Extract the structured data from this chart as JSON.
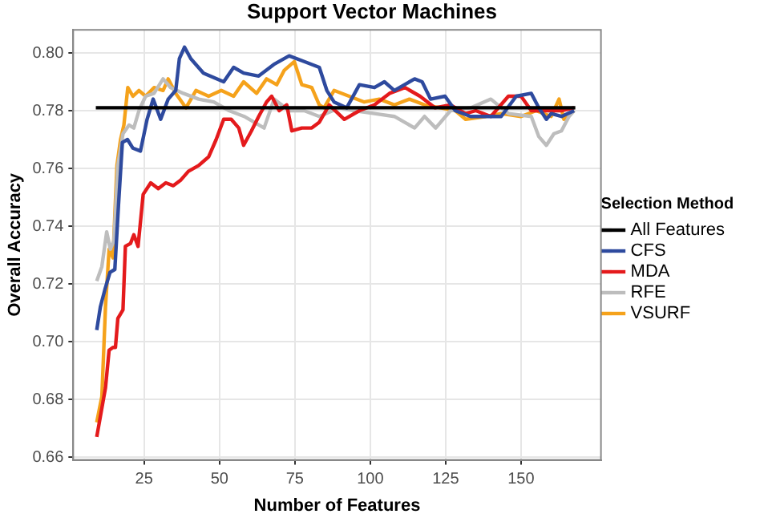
{
  "chart_data": {
    "type": "line",
    "title": "Support Vector Machines",
    "xlabel": "Number of Features",
    "ylabel": "Overall Accuracy",
    "legend_title": "Selection Method",
    "legend": "right",
    "grid": true,
    "marker": "none",
    "line_style": "solid",
    "xlim": [
      1.5,
      176.5
    ],
    "xticks": [
      25,
      50,
      75,
      100,
      125,
      150
    ],
    "ylim": [
      0.659,
      0.808
    ],
    "yticks": [
      0.66,
      0.68,
      {
        "value": 0.7,
        "label": "0.70"
      },
      0.72,
      0.74,
      0.76,
      0.78,
      {
        "value": 0.8,
        "label": "0.80"
      }
    ],
    "series": [
      {
        "name": "All Features",
        "color": "#000000",
        "x": [
          9,
          168
        ],
        "values": [
          0.781,
          0.781
        ]
      },
      {
        "name": "CFS",
        "color": "#2e4a9e",
        "x": [
          9.3,
          10.5,
          12,
          13.7,
          15.3,
          16.5,
          17.8,
          19.5,
          21.3,
          23.8,
          26,
          28,
          30.5,
          33,
          35.5,
          36.7,
          38.4,
          40.5,
          44.7,
          51.4,
          54.7,
          58,
          63,
          68,
          73.1,
          78.1,
          83.1,
          85.6,
          88,
          92.2,
          96.4,
          101.4,
          104.7,
          108,
          114.7,
          117.2,
          120,
          124.8,
          128.2,
          133.3,
          143.4,
          148.4,
          153.4,
          155.9,
          158.4,
          160,
          163.4,
          167.6
        ],
        "values": [
          0.704,
          0.712,
          0.718,
          0.724,
          0.725,
          0.747,
          0.769,
          0.77,
          0.767,
          0.766,
          0.777,
          0.784,
          0.777,
          0.784,
          0.787,
          0.798,
          0.802,
          0.798,
          0.793,
          0.79,
          0.795,
          0.793,
          0.792,
          0.796,
          0.799,
          0.797,
          0.795,
          0.787,
          0.783,
          0.781,
          0.789,
          0.788,
          0.79,
          0.787,
          0.791,
          0.79,
          0.784,
          0.785,
          0.78,
          0.778,
          0.778,
          0.785,
          0.786,
          0.781,
          0.777,
          0.779,
          0.778,
          0.78
        ]
      },
      {
        "name": "MDA",
        "color": "#e41a1c",
        "x": [
          9.3,
          10.5,
          12.2,
          13.4,
          14.7,
          15.5,
          16.3,
          18,
          18.8,
          20.5,
          21.6,
          23,
          24.7,
          27.2,
          29.7,
          32.2,
          34.7,
          37.2,
          39.7,
          43.1,
          46.4,
          48.9,
          51.4,
          53.9,
          56.4,
          58,
          60.6,
          63,
          65.6,
          67.3,
          69.8,
          72.3,
          74,
          77.3,
          80.6,
          83.1,
          86.4,
          91.4,
          96.4,
          101.4,
          106.4,
          111.5,
          116.5,
          121.5,
          126.6,
          131.6,
          135,
          140,
          145.8,
          150,
          153.4,
          158.4,
          163.4,
          167.6
        ],
        "values": [
          0.667,
          0.674,
          0.684,
          0.697,
          0.698,
          0.698,
          0.708,
          0.711,
          0.733,
          0.734,
          0.737,
          0.733,
          0.751,
          0.755,
          0.753,
          0.755,
          0.754,
          0.756,
          0.759,
          0.761,
          0.764,
          0.77,
          0.777,
          0.777,
          0.774,
          0.768,
          0.773,
          0.778,
          0.783,
          0.785,
          0.78,
          0.782,
          0.773,
          0.774,
          0.774,
          0.776,
          0.782,
          0.777,
          0.78,
          0.782,
          0.786,
          0.788,
          0.785,
          0.781,
          0.782,
          0.779,
          0.78,
          0.778,
          0.785,
          0.785,
          0.78,
          0.78,
          0.78,
          0.781
        ]
      },
      {
        "name": "RFE",
        "color": "#bdbdbd",
        "x": [
          9.3,
          11,
          12.6,
          13.8,
          15,
          16.3,
          18,
          20,
          21.6,
          23.3,
          25.5,
          28.3,
          31.3,
          33.8,
          38,
          43.1,
          48.1,
          53.2,
          58.2,
          61.5,
          64.8,
          68.1,
          73.1,
          78.1,
          83.1,
          89.7,
          94.7,
          101.4,
          108,
          114.7,
          118,
          121.7,
          126.6,
          133.3,
          140,
          145.8,
          153.4,
          155.9,
          158.4,
          160.9,
          163.4,
          165.9,
          167.6
        ],
        "values": [
          0.721,
          0.726,
          0.738,
          0.732,
          0.735,
          0.761,
          0.772,
          0.775,
          0.774,
          0.78,
          0.785,
          0.786,
          0.791,
          0.788,
          0.786,
          0.784,
          0.783,
          0.78,
          0.778,
          0.776,
          0.774,
          0.784,
          0.78,
          0.78,
          0.778,
          0.781,
          0.78,
          0.779,
          0.778,
          0.774,
          0.778,
          0.774,
          0.78,
          0.781,
          0.784,
          0.779,
          0.778,
          0.771,
          0.768,
          0.772,
          0.773,
          0.778,
          0.78
        ]
      },
      {
        "name": "VSURF",
        "color": "#f5a21b",
        "x": [
          9.3,
          11,
          12.2,
          13.4,
          14.7,
          16,
          17.2,
          18.3,
          19.6,
          21.3,
          23.3,
          25.5,
          28.3,
          31.3,
          33,
          35.5,
          38.9,
          42.2,
          46.4,
          50.6,
          54.7,
          58,
          62.3,
          65.6,
          69,
          71.5,
          74.8,
          77.3,
          80.6,
          83.1,
          84.7,
          88,
          93,
          98,
          103,
          108,
          113,
          118,
          123.2,
          128.2,
          131.6,
          138.3,
          143.4,
          150,
          155,
          160,
          162.6,
          164.2,
          167.6
        ],
        "values": [
          0.672,
          0.681,
          0.712,
          0.732,
          0.729,
          0.761,
          0.77,
          0.775,
          0.788,
          0.785,
          0.787,
          0.785,
          0.788,
          0.787,
          0.791,
          0.786,
          0.781,
          0.787,
          0.785,
          0.787,
          0.785,
          0.79,
          0.786,
          0.791,
          0.789,
          0.794,
          0.797,
          0.789,
          0.788,
          0.782,
          0.781,
          0.787,
          0.785,
          0.783,
          0.784,
          0.782,
          0.784,
          0.782,
          0.781,
          0.78,
          0.777,
          0.778,
          0.779,
          0.778,
          0.78,
          0.778,
          0.784,
          0.777,
          0.78
        ]
      }
    ]
  }
}
